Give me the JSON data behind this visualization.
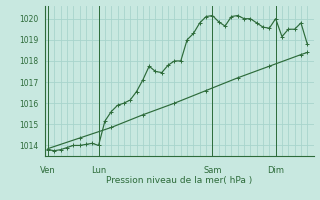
{
  "background_color": "#c8e8e0",
  "grid_color": "#a8d4cc",
  "line_color": "#2d6b3a",
  "ylim": [
    1013.5,
    1020.6
  ],
  "xlabel": "Pression niveau de la mer( hPa )",
  "day_labels": [
    "Ven",
    "Lun",
    "Sam",
    "Dim"
  ],
  "day_positions": [
    0,
    8,
    26,
    36
  ],
  "vline_positions": [
    0,
    8,
    26,
    36
  ],
  "series1_x": [
    0,
    1,
    2,
    3,
    4,
    5,
    6,
    7,
    8,
    9,
    10,
    11,
    12,
    13,
    14,
    15,
    16,
    17,
    18,
    19,
    20,
    21,
    22,
    23,
    24,
    25,
    26,
    27,
    28,
    29,
    30,
    31,
    32,
    33,
    34,
    35,
    36,
    37,
    38,
    39,
    40,
    41
  ],
  "series1_y": [
    1013.8,
    1013.75,
    1013.8,
    1013.9,
    1014.0,
    1014.0,
    1014.05,
    1014.1,
    1014.0,
    1015.15,
    1015.6,
    1015.9,
    1016.0,
    1016.15,
    1016.55,
    1017.1,
    1017.75,
    1017.5,
    1017.45,
    1017.8,
    1018.0,
    1018.0,
    1019.0,
    1019.3,
    1019.8,
    1020.1,
    1020.15,
    1019.85,
    1019.65,
    1020.1,
    1020.15,
    1020.0,
    1020.0,
    1019.8,
    1019.6,
    1019.55,
    1020.0,
    1019.15,
    1019.5,
    1019.5,
    1019.8,
    1018.8
  ],
  "series2_x": [
    0,
    5,
    10,
    15,
    20,
    25,
    30,
    35,
    40,
    41
  ],
  "series2_y": [
    1013.85,
    1014.35,
    1014.85,
    1015.45,
    1016.0,
    1016.6,
    1017.2,
    1017.75,
    1018.3,
    1018.4
  ],
  "xlim": [
    -0.5,
    42
  ],
  "total_x": 41
}
